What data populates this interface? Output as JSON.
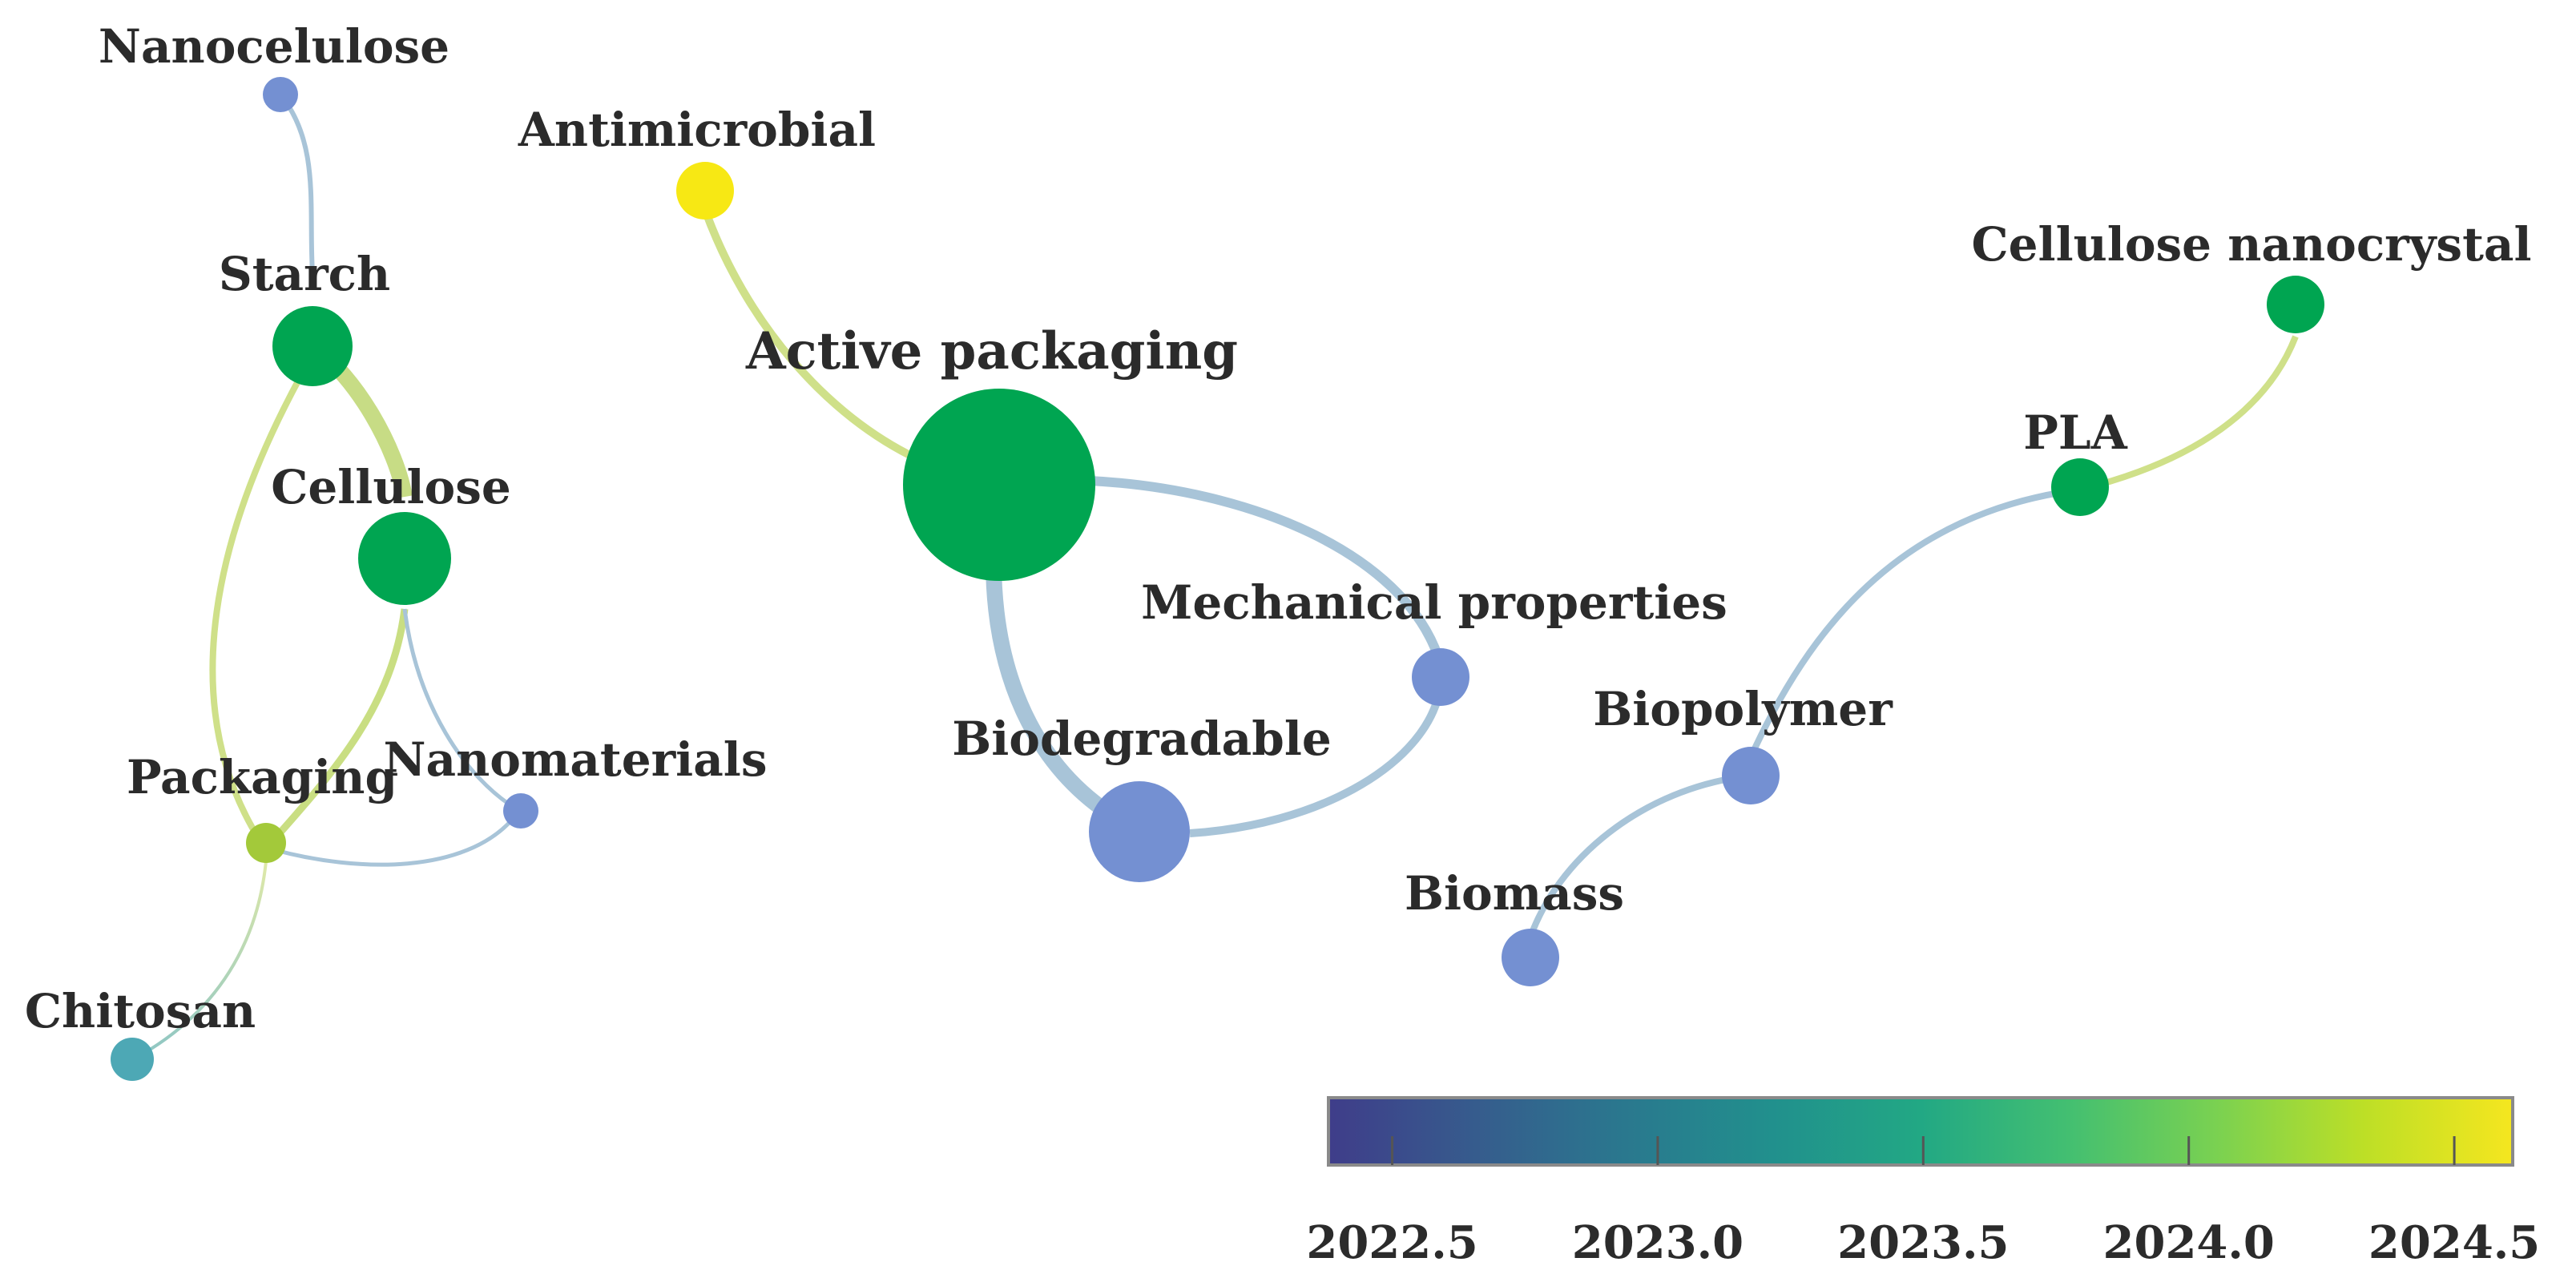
{
  "nodes": [
    {
      "id": "nanocelulose",
      "label": "Nanocelulose",
      "year": 2022.7
    },
    {
      "id": "antimicrobial",
      "label": "Antimicrobial",
      "year": 2024.6
    },
    {
      "id": "starch",
      "label": "Starch",
      "year": 2023.6
    },
    {
      "id": "cellulose",
      "label": "Cellulose",
      "year": 2023.6
    },
    {
      "id": "packaging",
      "label": "Packaging",
      "year": 2024.0
    },
    {
      "id": "nanomaterials",
      "label": "Nanomaterials",
      "year": 2022.7
    },
    {
      "id": "chitosan",
      "label": "Chitosan",
      "year": 2023.2
    },
    {
      "id": "active-packaging",
      "label": "Active packaging",
      "year": 2023.6
    },
    {
      "id": "biodegradable",
      "label": "Biodegradable",
      "year": 2022.7
    },
    {
      "id": "mechanical-properties",
      "label": "Mechanical properties",
      "year": 2022.7
    },
    {
      "id": "cellulose-nanocrystal",
      "label": "Cellulose nanocrystal",
      "year": 2023.6
    },
    {
      "id": "pla",
      "label": "PLA",
      "year": 2023.6
    },
    {
      "id": "biopolymer",
      "label": "Biopolymer",
      "year": 2022.7
    },
    {
      "id": "biomass",
      "label": "Biomass",
      "year": 2022.7
    }
  ],
  "edges": [
    {
      "source": "nanocelulose",
      "target": "starch"
    },
    {
      "source": "starch",
      "target": "cellulose"
    },
    {
      "source": "starch",
      "target": "packaging"
    },
    {
      "source": "cellulose",
      "target": "packaging"
    },
    {
      "source": "cellulose",
      "target": "nanomaterials"
    },
    {
      "source": "packaging",
      "target": "nanomaterials"
    },
    {
      "source": "packaging",
      "target": "chitosan"
    },
    {
      "source": "antimicrobial",
      "target": "active-packaging"
    },
    {
      "source": "active-packaging",
      "target": "mechanical-properties"
    },
    {
      "source": "active-packaging",
      "target": "biodegradable"
    },
    {
      "source": "biodegradable",
      "target": "mechanical-properties"
    },
    {
      "source": "pla",
      "target": "cellulose-nanocrystal"
    },
    {
      "source": "biopolymer",
      "target": "pla"
    },
    {
      "source": "biomass",
      "target": "biopolymer"
    }
  ],
  "colorbar": {
    "min": 2022.38,
    "max": 2024.61,
    "ticks": [
      "2022.5",
      "2023.0",
      "2023.5",
      "2024.0",
      "2024.5"
    ],
    "colors": [
      "#3f3d8a",
      "#365c8d",
      "#2a788e",
      "#21908d",
      "#22a884",
      "#43bf71",
      "#7ad151",
      "#bddf26",
      "#f5e61f"
    ]
  },
  "node_colors": {
    "blue": "#7490d2",
    "green": "#00a551",
    "yellow": "#f7e814",
    "lime": "#a3c93a",
    "teal": "#4da8b5"
  }
}
